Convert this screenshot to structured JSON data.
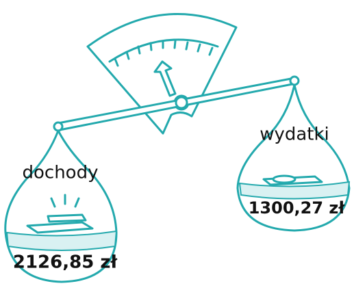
{
  "left_pan": {
    "label": "dochody",
    "amount": "2126,85 zł"
  },
  "right_pan": {
    "label": "wydatki",
    "amount": "1300,27 zł"
  }
}
